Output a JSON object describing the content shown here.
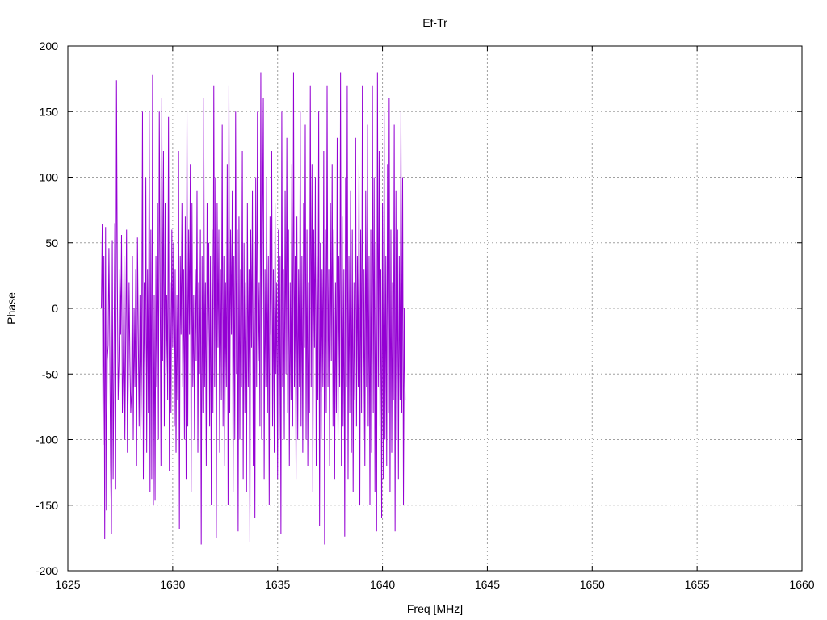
{
  "chart_data": {
    "type": "line",
    "title": "Ef-Tr",
    "xlabel": "Freq [MHz]",
    "ylabel": "Phase",
    "xlim": [
      1625,
      1660
    ],
    "ylim": [
      -200,
      200
    ],
    "x_ticks": [
      1625,
      1630,
      1635,
      1640,
      1645,
      1650,
      1655,
      1660
    ],
    "y_ticks": [
      -200,
      -150,
      -100,
      -50,
      0,
      50,
      100,
      150,
      200
    ],
    "grid": true,
    "legend": "none",
    "color": "#9400d3",
    "series": [
      {
        "x_start": 1626.6,
        "x_step": 0.04,
        "values": [
          0,
          64,
          -104,
          40,
          -176,
          62,
          -154,
          -40,
          -28,
          46,
          -30,
          -120,
          -172,
          52,
          -130,
          -40,
          65,
          -138,
          174,
          24,
          -70,
          -40,
          30,
          -20,
          56,
          -80,
          -46,
          40,
          -100,
          -20,
          60,
          -110,
          -60,
          20,
          -40,
          -80,
          -64,
          40,
          -100,
          0,
          -60,
          30,
          -120,
          54,
          -20,
          -90,
          10,
          -100,
          -40,
          150,
          -130,
          20,
          -50,
          100,
          -110,
          30,
          -80,
          150,
          -140,
          60,
          -130,
          178,
          -150,
          10,
          -146,
          40,
          -60,
          80,
          -100,
          150,
          20,
          -120,
          160,
          -40,
          120,
          -90,
          80,
          -50,
          10,
          -70,
          146,
          -124,
          20,
          -80,
          60,
          -30,
          50,
          -90,
          30,
          -110,
          10,
          -70,
          120,
          -168,
          40,
          -20,
          80,
          -60,
          30,
          -100,
          70,
          -130,
          150,
          -90,
          60,
          -20,
          110,
          -140,
          80,
          -60,
          10,
          -100,
          30,
          -40,
          90,
          -110,
          20,
          -50,
          60,
          -180,
          40,
          -80,
          160,
          -60,
          20,
          -120,
          80,
          -30,
          50,
          -90,
          40,
          -150,
          60,
          -80,
          170,
          -60,
          100,
          -175,
          80,
          -30,
          60,
          -110,
          30,
          -70,
          140,
          -90,
          40,
          -120,
          20,
          -60,
          110,
          -150,
          170,
          -80,
          60,
          -20,
          90,
          -140,
          40,
          -100,
          150,
          -50,
          60,
          -170,
          70,
          -100,
          30,
          -60,
          120,
          -130,
          50,
          -80,
          20,
          -140,
          80,
          -60,
          30,
          -178,
          60,
          -30,
          90,
          -120,
          50,
          -160,
          100,
          -60,
          150,
          -40,
          20,
          -90,
          180,
          -100,
          60,
          160,
          -130,
          30,
          -60,
          100,
          -80,
          40,
          -150,
          70,
          -20,
          120,
          -90,
          30,
          -110,
          80,
          -50,
          20,
          -130,
          60,
          -100,
          40,
          -172,
          150,
          -60,
          30,
          -100,
          90,
          -50,
          130,
          -80,
          60,
          -120,
          20,
          -70,
          110,
          -90,
          180,
          -60,
          40,
          -130,
          70,
          -100,
          30,
          -60,
          150,
          -90,
          40,
          -110,
          80,
          -30,
          140,
          -100,
          60,
          -120,
          20,
          -80,
          170,
          -60,
          110,
          -140,
          60,
          -30,
          100,
          -120,
          40,
          -70,
          150,
          -166,
          50,
          -100,
          30,
          -60,
          120,
          -180,
          60,
          -80,
          170,
          -60,
          30,
          -120,
          80,
          -40,
          110,
          -90,
          60,
          -130,
          20,
          -80,
          130,
          -100,
          40,
          -60,
          180,
          -120,
          70,
          -90,
          30,
          -174,
          100,
          -60,
          170,
          -130,
          40,
          -80,
          90,
          -110,
          60,
          -140,
          20,
          -70,
          130,
          -90,
          40,
          -60,
          110,
          -150,
          60,
          -80,
          170,
          -100,
          30,
          -120,
          90,
          -60,
          140,
          -90,
          40,
          -150,
          60,
          -110,
          170,
          -80,
          100,
          -140,
          50,
          -170,
          180,
          -60,
          120,
          -90,
          30,
          -160,
          80,
          -130,
          150,
          -100,
          40,
          -120,
          110,
          -80,
          160,
          -140,
          60,
          -110,
          20,
          -70,
          140,
          -170,
          90,
          -100,
          60,
          -130,
          40,
          -70,
          150,
          -80,
          100,
          -150,
          0,
          -70
        ]
      }
    ]
  }
}
